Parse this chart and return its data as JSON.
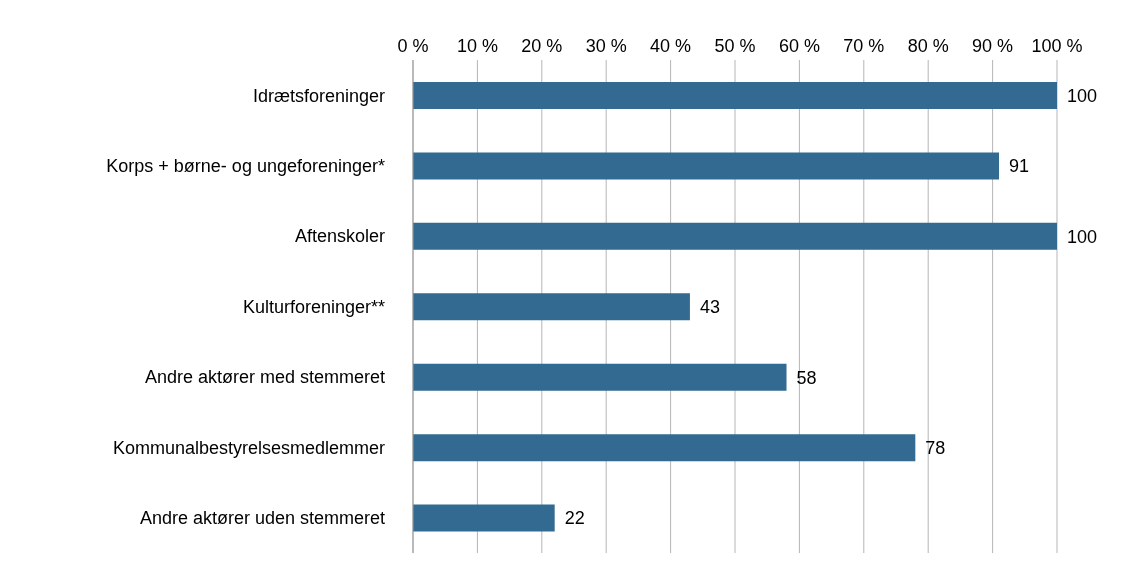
{
  "chart_data": {
    "type": "bar",
    "orientation": "horizontal",
    "categories": [
      "Idrætsforeninger",
      "Korps + børne- og ungeforeninger*",
      "Aftenskoler",
      "Kulturforeninger**",
      "Andre aktører med stemmeret",
      "Kommunalbestyrelsesmedlemmer",
      "Andre aktører uden stemmeret"
    ],
    "values": [
      100,
      91,
      100,
      43,
      58,
      78,
      22
    ],
    "color": "#336a91",
    "xlim": [
      0,
      100
    ],
    "xticks": [
      {
        "value": 0,
        "label": "0 %"
      },
      {
        "value": 10,
        "label": "10 %"
      },
      {
        "value": 20,
        "label": "20 %"
      },
      {
        "value": 30,
        "label": "30 %"
      },
      {
        "value": 40,
        "label": "40 %"
      },
      {
        "value": 50,
        "label": "50 %"
      },
      {
        "value": 60,
        "label": "60 %"
      },
      {
        "value": 70,
        "label": "70 %"
      },
      {
        "value": 80,
        "label": "80 %"
      },
      {
        "value": 90,
        "label": "90 %"
      },
      {
        "value": 100,
        "label": "100 %"
      }
    ],
    "grid": "x",
    "data_labels": true
  }
}
